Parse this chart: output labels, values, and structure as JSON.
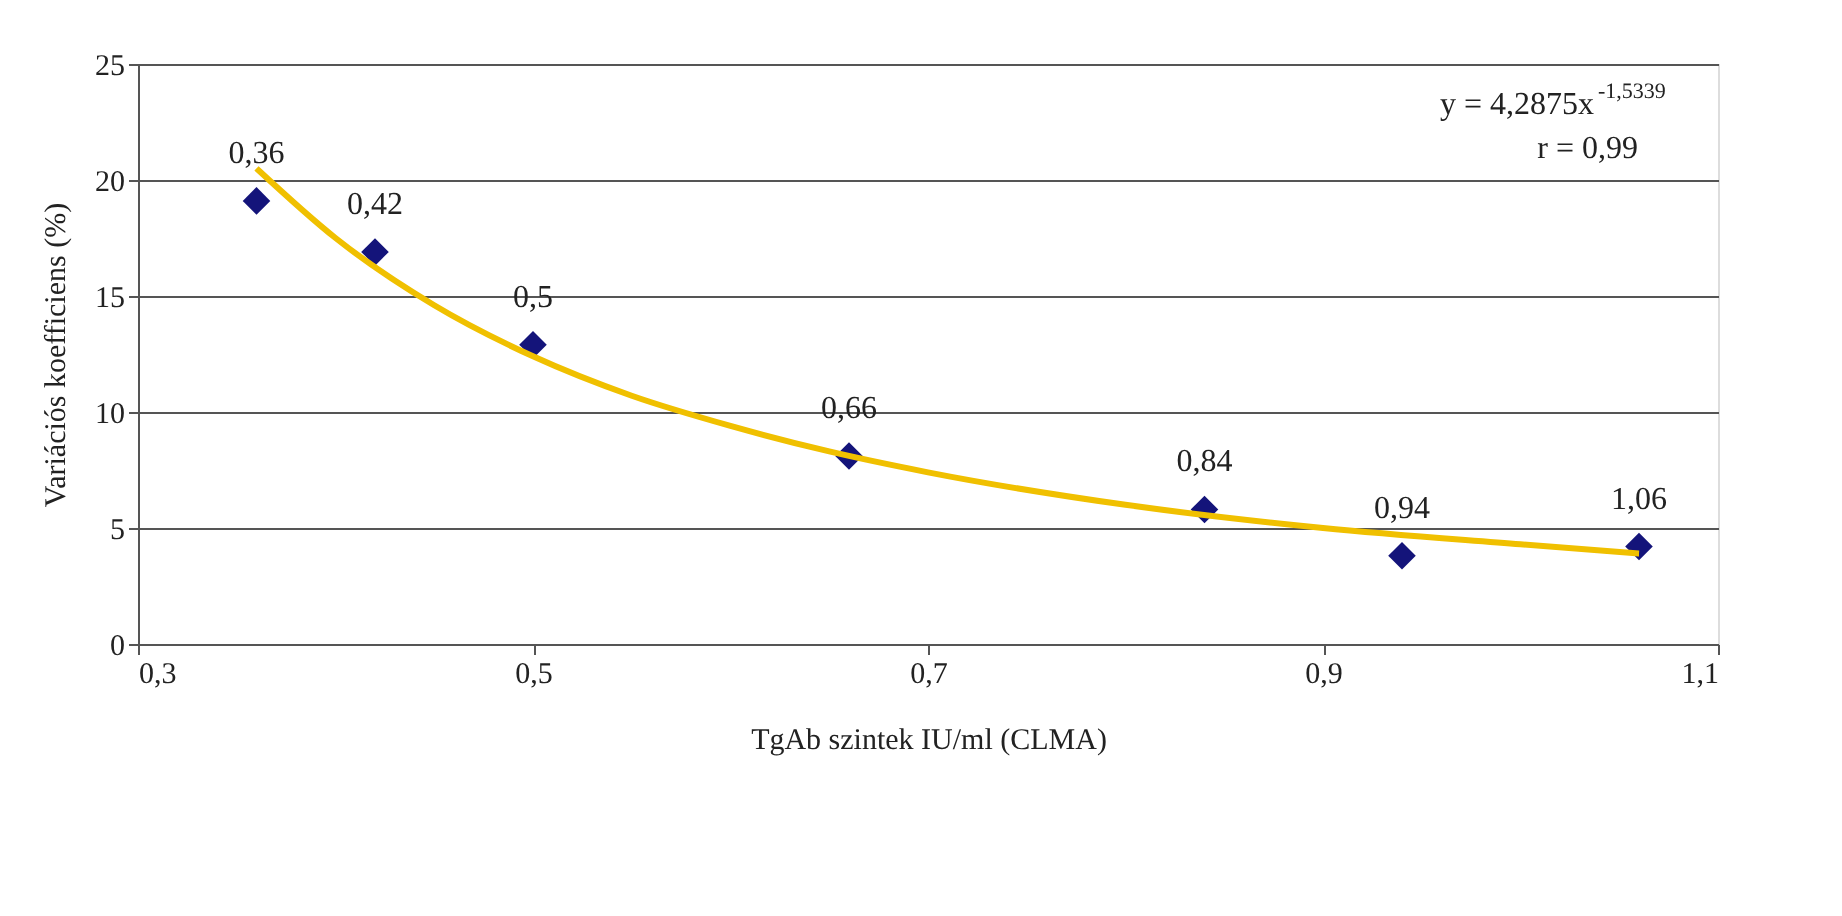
{
  "chart_data": {
    "type": "scatter",
    "xlabel": "TgAb szintek IU/ml (CLMA)",
    "ylabel": "Variációs koefficiens (%)",
    "xlim": [
      0.3,
      1.1
    ],
    "xticks": [
      {
        "value": 0.3,
        "label": "0,3"
      },
      {
        "value": 0.5,
        "label": "0,5"
      },
      {
        "value": 0.7,
        "label": "0,7"
      },
      {
        "value": 0.9,
        "label": "0,9"
      },
      {
        "value": 1.1,
        "label": "1,1"
      }
    ],
    "ylim": [
      0,
      25
    ],
    "yticks": [
      0,
      5,
      10,
      15,
      20,
      25
    ],
    "grid": "y",
    "annotations": [
      "y = 4,2875x$^{-1,5339}$",
      "r = 0,99",
      {
        "text": "0,36",
        "x": 0.36,
        "y": 19.1
      },
      {
        "text": "0,42",
        "x": 0.42,
        "y": 16.9
      },
      {
        "text": "0,5",
        "x": 0.5,
        "y": 12.9
      },
      {
        "text": "0,66",
        "x": 0.66,
        "y": 8.1
      },
      {
        "text": "0,84",
        "x": 0.84,
        "y": 5.8
      },
      {
        "text": "0,94",
        "x": 0.94,
        "y": 3.8
      },
      {
        "text": "1,06",
        "x": 1.06,
        "y": 4.2
      }
    ],
    "series": [
      {
        "color": "#14147a",
        "marker": "diamond",
        "x": [
          0.36,
          0.42,
          0.5,
          0.66,
          0.84,
          0.94,
          1.06
        ],
        "values": [
          19.1,
          16.9,
          12.9,
          8.1,
          5.8,
          3.8,
          4.2
        ]
      },
      {
        "type": "line",
        "color": "#f0c000",
        "x": [
          0.36,
          0.4,
          0.45,
          0.5,
          0.55,
          0.6,
          0.65,
          0.7,
          0.8,
          0.9,
          1.0,
          1.06
        ],
        "values": [
          20.5,
          17.5,
          14.6,
          12.4,
          10.7,
          9.4,
          8.3,
          7.4,
          6.0,
          5.0,
          4.3,
          3.9
        ]
      }
    ]
  }
}
